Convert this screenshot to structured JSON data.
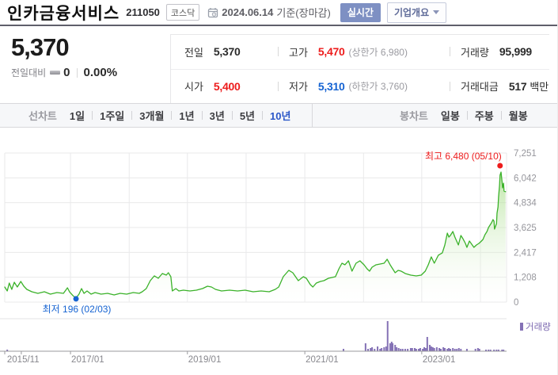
{
  "colors": {
    "red": "#ed1c1c",
    "blue": "#1563d2",
    "green_line": "#3bb22a",
    "green_fill_top": "#8fd468",
    "purple": "#8471b5",
    "purple_text": "#7c68b0",
    "tab_selected": "#2b57c8",
    "grid": "#e9e9ea",
    "axis_text": "#96969c"
  },
  "header": {
    "title": "인카금융서비스",
    "code": "211050",
    "market_badge": "코스닥",
    "date": "2024.06.14",
    "date_suffix": "기준(장마감)",
    "realtime_button": "실시간",
    "overview_button": "기업개요"
  },
  "price": {
    "current": "5,370",
    "change_label": "전일대비",
    "change_value": "0",
    "change_percent": "0.00%"
  },
  "summary": {
    "cells": [
      {
        "id": "prev-close",
        "label": "전일",
        "value": "5,370",
        "color": null,
        "extra": null,
        "unit": null
      },
      {
        "id": "high",
        "label": "고가",
        "value": "5,470",
        "color": "red",
        "extra": "(상한가 6,980)",
        "unit": null
      },
      {
        "id": "volume",
        "label": "거래량",
        "value": "95,999",
        "color": null,
        "extra": null,
        "unit": null
      },
      {
        "id": "open",
        "label": "시가",
        "value": "5,400",
        "color": "red",
        "extra": null,
        "unit": null
      },
      {
        "id": "low",
        "label": "저가",
        "value": "5,310",
        "color": "blue",
        "extra": "(하한가 3,760)",
        "unit": null
      },
      {
        "id": "trade-amount",
        "label": "거래대금",
        "value": "517",
        "color": null,
        "extra": null,
        "unit": "백만"
      }
    ]
  },
  "chart_tabs": {
    "line": {
      "caption": "선차트",
      "items": [
        "1일",
        "1주일",
        "3개월",
        "1년",
        "3년",
        "5년",
        "10년"
      ],
      "selected": "10년"
    },
    "candle": {
      "caption": "봉차트",
      "items": [
        "일봉",
        "주봉",
        "월봉"
      ],
      "selected": null
    }
  },
  "chart_data": {
    "type": "area",
    "ylim": [
      0,
      7251
    ],
    "y_tick_values": [
      7251,
      6042,
      4834,
      3625,
      2417,
      1208,
      0
    ],
    "y_tick_labels": [
      "7,251",
      "6,042",
      "4,834",
      "3,625",
      "2,417",
      "1,208",
      "0"
    ],
    "x_tick_labels": [
      "2015/11",
      "2017/01",
      "2019/01",
      "2021/01",
      "2023/01"
    ],
    "x_tick_pcts": [
      0.3,
      13.1,
      36.4,
      59.8,
      83.1
    ],
    "x_axis_tick_pcts": [
      0,
      3.3,
      13.1,
      36.4,
      59.8,
      83.1
    ],
    "grid_x_pcts": [
      0,
      13.1,
      24.8,
      36.4,
      48.1,
      59.8,
      71.5,
      83.1,
      94.8,
      100
    ],
    "annotations": {
      "high": {
        "label": "최고 6,480 (05/10)",
        "value": 6480,
        "pct": 98.7
      },
      "low": {
        "label": "최저 196 (02/03)",
        "value": 196,
        "pct": 14.2
      }
    },
    "volume_legend": "거래량",
    "points": [
      [
        0,
        733
      ],
      [
        0.5,
        540
      ],
      [
        0.9,
        926
      ],
      [
        1.4,
        617
      ],
      [
        1.9,
        964
      ],
      [
        2.5,
        733
      ],
      [
        3.2,
        1003
      ],
      [
        3.8,
        771
      ],
      [
        4.4,
        617
      ],
      [
        5.4,
        501
      ],
      [
        6.6,
        424
      ],
      [
        7.9,
        501
      ],
      [
        9.1,
        386
      ],
      [
        10.4,
        463
      ],
      [
        11.7,
        424
      ],
      [
        12.5,
        694
      ],
      [
        12.9,
        501
      ],
      [
        13.6,
        309
      ],
      [
        14.2,
        196
      ],
      [
        14.8,
        386
      ],
      [
        15.3,
        656
      ],
      [
        15.8,
        424
      ],
      [
        16.4,
        540
      ],
      [
        17.2,
        386
      ],
      [
        18,
        463
      ],
      [
        19.2,
        386
      ],
      [
        20.5,
        424
      ],
      [
        21.8,
        347
      ],
      [
        23,
        424
      ],
      [
        24.3,
        386
      ],
      [
        25.6,
        463
      ],
      [
        26.8,
        424
      ],
      [
        27.4,
        501
      ],
      [
        28.2,
        656
      ],
      [
        29,
        1041
      ],
      [
        29.8,
        1273
      ],
      [
        30.6,
        1157
      ],
      [
        31.4,
        1389
      ],
      [
        32.2,
        1311
      ],
      [
        32.6,
        1427
      ],
      [
        33.1,
        1234
      ],
      [
        33.4,
        540
      ],
      [
        34.1,
        656
      ],
      [
        34.7,
        540
      ],
      [
        35.6,
        579
      ],
      [
        36.9,
        540
      ],
      [
        38.2,
        579
      ],
      [
        39.4,
        656
      ],
      [
        40.4,
        771
      ],
      [
        41.2,
        733
      ],
      [
        42,
        617
      ],
      [
        43.2,
        540
      ],
      [
        44.8,
        579
      ],
      [
        46.4,
        540
      ],
      [
        47.9,
        579
      ],
      [
        49.5,
        501
      ],
      [
        51.1,
        540
      ],
      [
        52.7,
        501
      ],
      [
        53.9,
        617
      ],
      [
        54.6,
        733
      ],
      [
        55.5,
        1234
      ],
      [
        56.6,
        1543
      ],
      [
        57.4,
        1427
      ],
      [
        58.5,
        1041
      ],
      [
        59.5,
        1234
      ],
      [
        60.1,
        1157
      ],
      [
        60.9,
        849
      ],
      [
        61.4,
        733
      ],
      [
        62.1,
        926
      ],
      [
        62.9,
        1003
      ],
      [
        63.6,
        1041
      ],
      [
        64.5,
        1157
      ],
      [
        65.9,
        1234
      ],
      [
        66.6,
        1620
      ],
      [
        67.2,
        1890
      ],
      [
        67.8,
        1813
      ],
      [
        68.5,
        2006
      ],
      [
        69.2,
        1504
      ],
      [
        70,
        1890
      ],
      [
        70.8,
        2006
      ],
      [
        71.6,
        1813
      ],
      [
        72.2,
        1620
      ],
      [
        72.7,
        1504
      ],
      [
        73.2,
        1697
      ],
      [
        74,
        1813
      ],
      [
        74.8,
        1851
      ],
      [
        75.6,
        1890
      ],
      [
        76.2,
        2083
      ],
      [
        76.8,
        1813
      ],
      [
        77.8,
        1427
      ],
      [
        78.4,
        1543
      ],
      [
        79,
        1504
      ],
      [
        79.8,
        1389
      ],
      [
        80.9,
        1311
      ],
      [
        82,
        1273
      ],
      [
        83,
        1311
      ],
      [
        83.8,
        1504
      ],
      [
        84.4,
        1813
      ],
      [
        85,
        2198
      ],
      [
        85.6,
        1890
      ],
      [
        86.4,
        2276
      ],
      [
        87.2,
        2392
      ],
      [
        87.7,
        2777
      ],
      [
        88.2,
        3355
      ],
      [
        88.5,
        3163
      ],
      [
        88.8,
        3240
      ],
      [
        89.3,
        3433
      ],
      [
        89.7,
        3163
      ],
      [
        90.4,
        2777
      ],
      [
        90.9,
        3240
      ],
      [
        91.3,
        3086
      ],
      [
        91.8,
        2854
      ],
      [
        92.1,
        2661
      ],
      [
        92.6,
        2970
      ],
      [
        93.5,
        2661
      ],
      [
        94,
        2777
      ],
      [
        94.5,
        2854
      ],
      [
        95,
        2970
      ],
      [
        95.3,
        3047
      ],
      [
        95.7,
        3279
      ],
      [
        96.1,
        3433
      ],
      [
        96.4,
        3626
      ],
      [
        96.7,
        3742
      ],
      [
        97,
        3857
      ],
      [
        97.3,
        4012
      ],
      [
        97.5,
        3934
      ],
      [
        97.6,
        3548
      ],
      [
        98,
        3819
      ],
      [
        98.1,
        4320
      ],
      [
        98.3,
        4629
      ],
      [
        98.4,
        5092
      ],
      [
        98.6,
        5670
      ],
      [
        98.7,
        6171
      ],
      [
        98.9,
        6325
      ],
      [
        99.1,
        5863
      ],
      [
        99.2,
        5554
      ],
      [
        99.4,
        5786
      ],
      [
        99.5,
        5400
      ],
      [
        99.8,
        5370
      ]
    ],
    "volume_bars": [
      [
        0.5,
        2
      ],
      [
        67.5,
        3
      ],
      [
        71.9,
        10
      ],
      [
        72.4,
        3
      ],
      [
        72.9,
        4
      ],
      [
        73.2,
        5
      ],
      [
        73.7,
        3
      ],
      [
        74.3,
        6
      ],
      [
        74.8,
        3
      ],
      [
        75.1,
        4
      ],
      [
        75.6,
        5
      ],
      [
        76.0,
        6
      ],
      [
        76.3,
        38
      ],
      [
        76.8,
        10
      ],
      [
        77.1,
        12
      ],
      [
        77.3,
        10
      ],
      [
        77.8,
        8
      ],
      [
        78.1,
        5
      ],
      [
        78.5,
        4
      ],
      [
        78.9,
        3
      ],
      [
        79.3,
        3
      ],
      [
        79.8,
        3
      ],
      [
        80.3,
        3
      ],
      [
        80.9,
        4
      ],
      [
        81.2,
        4
      ],
      [
        81.7,
        4
      ],
      [
        82.0,
        3
      ],
      [
        82.5,
        3
      ],
      [
        82.8,
        4
      ],
      [
        83.3,
        3
      ],
      [
        83.6,
        5
      ],
      [
        83.9,
        4
      ],
      [
        84.2,
        18
      ],
      [
        84.7,
        8
      ],
      [
        85.0,
        6
      ],
      [
        85.3,
        5
      ],
      [
        85.6,
        4
      ],
      [
        86.1,
        5
      ],
      [
        86.6,
        4
      ],
      [
        86.9,
        3
      ],
      [
        87.4,
        5
      ],
      [
        87.7,
        4
      ],
      [
        88.2,
        3
      ],
      [
        88.5,
        4
      ],
      [
        88.8,
        3
      ],
      [
        89.3,
        4
      ],
      [
        89.7,
        3
      ],
      [
        90.1,
        3
      ],
      [
        90.5,
        4
      ],
      [
        90.9,
        3
      ],
      [
        92.1,
        3
      ],
      [
        93.8,
        3
      ],
      [
        94.3,
        4
      ],
      [
        94.6,
        3
      ],
      [
        95.9,
        2
      ],
      [
        96.4,
        2
      ],
      [
        96.8,
        2
      ],
      [
        97.5,
        2
      ],
      [
        98.0,
        2
      ],
      [
        98.4,
        2
      ],
      [
        99.1,
        2
      ],
      [
        99.4,
        2
      ]
    ]
  }
}
